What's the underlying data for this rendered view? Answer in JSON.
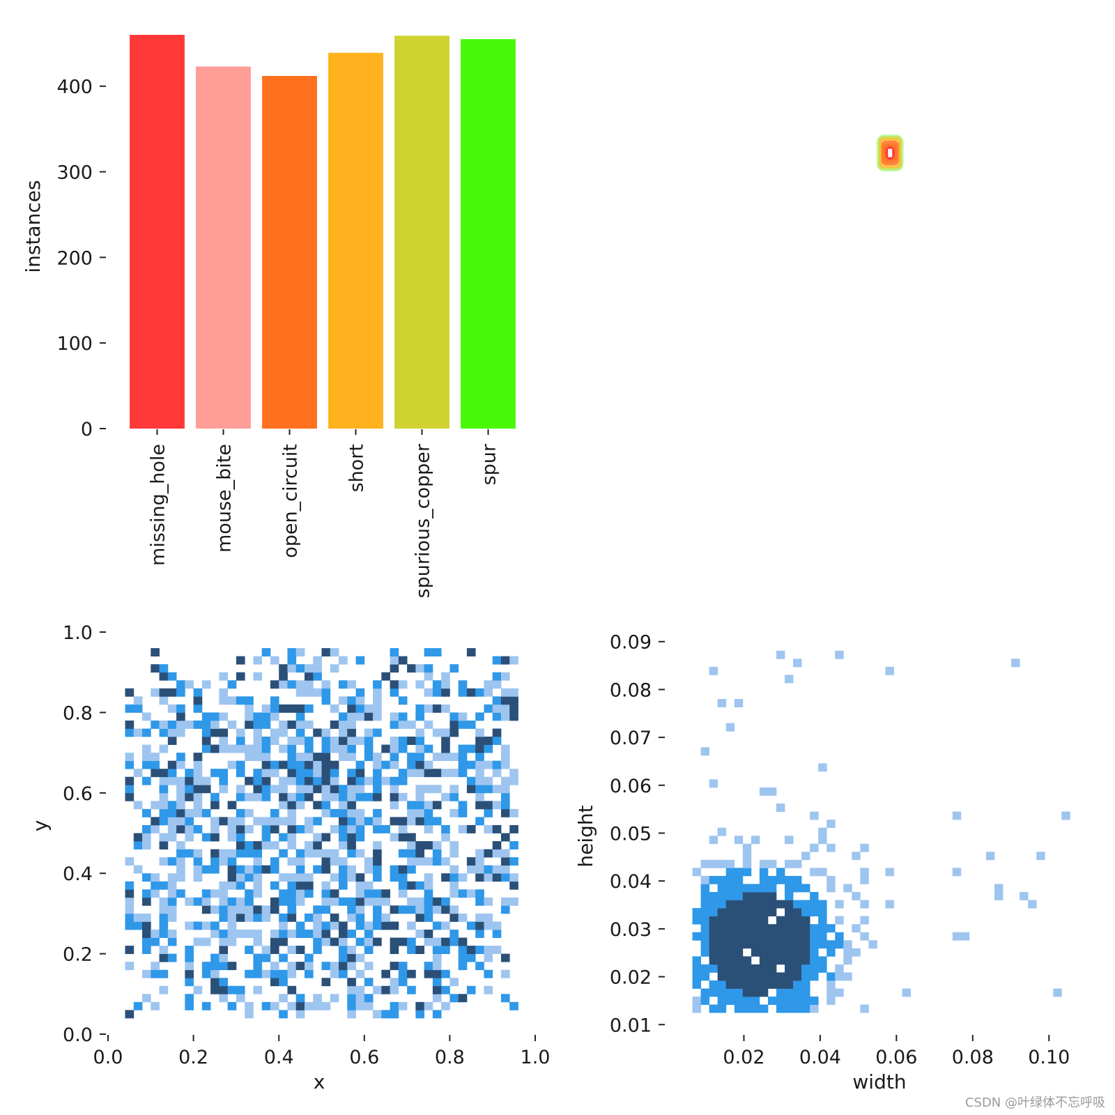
{
  "chart_data": [
    {
      "type": "bar",
      "ylabel": "instances",
      "ylim": [
        0,
        460
      ],
      "yticks": [
        0,
        100,
        200,
        300,
        400
      ],
      "categories": [
        "missing_hole",
        "mouse_bite",
        "open_circuit",
        "short",
        "spurious_copper",
        "spur"
      ],
      "values": [
        460,
        423,
        412,
        439,
        459,
        455
      ],
      "colors": [
        "#ff3838",
        "#ff9d97",
        "#ff701f",
        "#ffb21d",
        "#cfd231",
        "#48f90a"
      ]
    },
    {
      "type": "scatter",
      "marker": "box-outline",
      "x": [
        0.06
      ],
      "y": [
        0.3
      ],
      "colors": [
        "#ff3838",
        "#ff9d97",
        "#ff701f",
        "#ffb21d",
        "#cfd231",
        "#48f90a"
      ]
    },
    {
      "type": "heatmap",
      "xlabel": "x",
      "ylabel": "y",
      "xlim": [
        0,
        1
      ],
      "ylim": [
        0,
        1
      ],
      "xticks": [
        "0.0",
        "0.2",
        "0.4",
        "0.6",
        "0.8",
        "1.0"
      ],
      "yticks": [
        "0.0",
        "0.2",
        "0.4",
        "0.6",
        "0.8",
        "1.0"
      ],
      "bins": 50,
      "color_light": "#9ec5f0",
      "color_mid": "#2f98e8",
      "color_dark": "#2b5078",
      "density_range": [
        0.05,
        0.96
      ]
    },
    {
      "type": "heatmap",
      "xlabel": "width",
      "ylabel": "height",
      "xlim": [
        0,
        0.11
      ],
      "ylim": [
        0.008,
        0.092
      ],
      "xticks": [
        "0.02",
        "0.04",
        "0.06",
        "0.08",
        "0.10"
      ],
      "yticks": [
        "0.01",
        "0.02",
        "0.03",
        "0.04",
        "0.05",
        "0.06",
        "0.07",
        "0.08",
        "0.09"
      ],
      "bins": 50,
      "color_light": "#9ec5f0",
      "color_mid": "#2f98e8",
      "color_dark": "#2b5078",
      "peak": [
        0.023,
        0.026
      ]
    }
  ],
  "watermark": "CSDN @叶绿体不忘呼吸"
}
